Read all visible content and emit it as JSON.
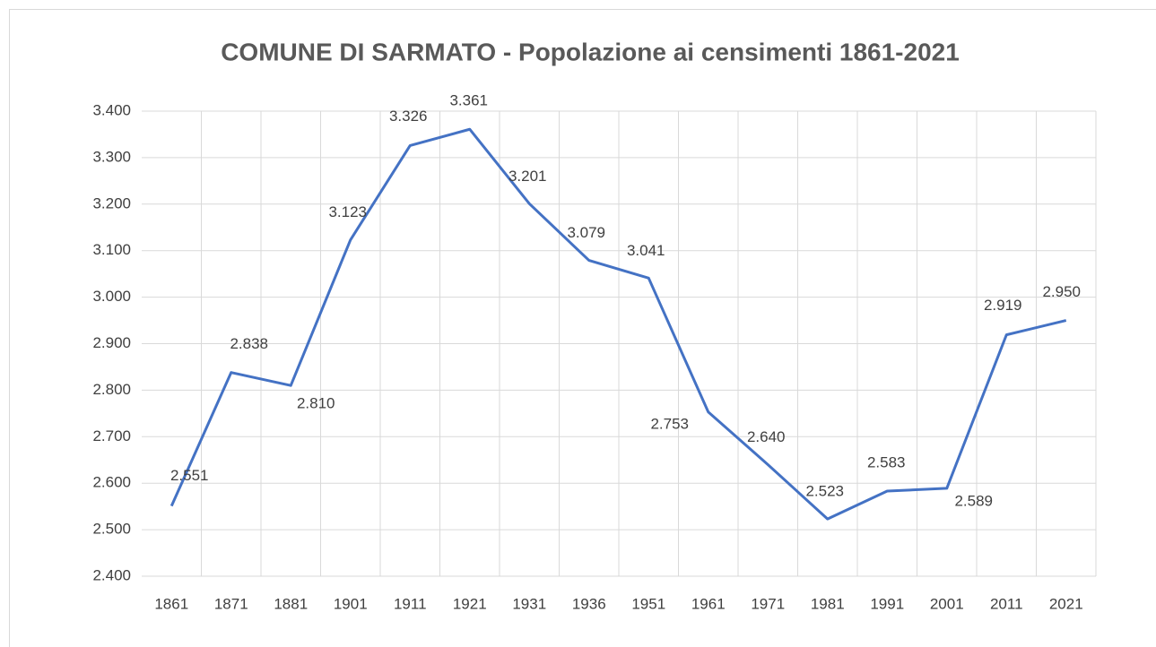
{
  "chart_data": {
    "type": "line",
    "title": "COMUNE DI SARMATO - Popolazione ai censimenti 1861-2021",
    "categories": [
      "1861",
      "1871",
      "1881",
      "1901",
      "1911",
      "1921",
      "1931",
      "1936",
      "1951",
      "1961",
      "1971",
      "1981",
      "1991",
      "2001",
      "2011",
      "2021"
    ],
    "series": [
      {
        "name": "Popolazione",
        "color": "#4472c4",
        "values": [
          2551,
          2838,
          2810,
          3123,
          3326,
          3361,
          3201,
          3079,
          3041,
          2753,
          2640,
          2523,
          2583,
          2589,
          2919,
          2950
        ],
        "value_labels": [
          "2.551",
          "2.838",
          "2.810",
          "3.123",
          "3.326",
          "3.361",
          "3.201",
          "3.079",
          "3.041",
          "2.753",
          "2.640",
          "2.523",
          "2.583",
          "2.589",
          "2.919",
          "2.950"
        ]
      }
    ],
    "ylim": [
      2400,
      3400
    ],
    "yticks": [
      {
        "value": 2400,
        "label": "2.400"
      },
      {
        "value": 2500,
        "label": "2.500"
      },
      {
        "value": 2600,
        "label": "2.600"
      },
      {
        "value": 2700,
        "label": "2.700"
      },
      {
        "value": 2800,
        "label": "2.800"
      },
      {
        "value": 2900,
        "label": "2.900"
      },
      {
        "value": 3000,
        "label": "3.000"
      },
      {
        "value": 3100,
        "label": "3.100"
      },
      {
        "value": 3200,
        "label": "3.200"
      },
      {
        "value": 3300,
        "label": "3.300"
      },
      {
        "value": 3400,
        "label": "3.400"
      }
    ],
    "grid": true
  }
}
